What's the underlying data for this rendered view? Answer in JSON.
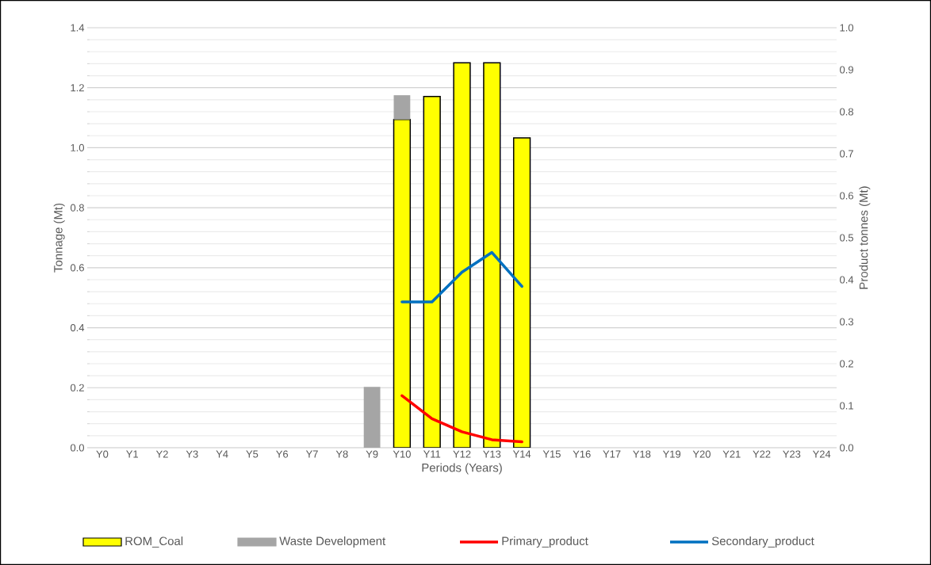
{
  "chart_data": {
    "type": "bar",
    "stacked": true,
    "xlabel": "Periods (Years)",
    "ylabel": "Tonnage (Mt)",
    "y2label": "Product tonnes (Mt)",
    "categories": [
      "Y0",
      "Y1",
      "Y2",
      "Y3",
      "Y4",
      "Y5",
      "Y6",
      "Y7",
      "Y8",
      "Y9",
      "Y10",
      "Y11",
      "Y12",
      "Y13",
      "Y14",
      "Y15",
      "Y16",
      "Y17",
      "Y18",
      "Y19",
      "Y20",
      "Y21",
      "Y22",
      "Y23",
      "Y24"
    ],
    "series": [
      {
        "name": "ROM_Coal",
        "color": "#ffff00",
        "values": [
          null,
          null,
          null,
          null,
          null,
          null,
          null,
          null,
          null,
          null,
          1.094,
          1.171,
          1.283,
          1.283,
          1.033,
          null,
          null,
          null,
          null,
          null,
          null,
          null,
          null,
          null,
          null
        ]
      },
      {
        "name": "Waste Development",
        "color": "#a5a5a5",
        "values": [
          null,
          null,
          null,
          null,
          null,
          null,
          null,
          null,
          null,
          0.203,
          0.081,
          null,
          null,
          null,
          null,
          null,
          null,
          null,
          null,
          null,
          null,
          null,
          null,
          null,
          null
        ]
      },
      {
        "name": "Primary_product",
        "type": "line",
        "axis": "y2",
        "color": "#ff0000",
        "values": [
          null,
          null,
          null,
          null,
          null,
          null,
          null,
          null,
          null,
          null,
          0.124,
          0.069,
          0.038,
          0.019,
          0.014,
          null,
          null,
          null,
          null,
          null,
          null,
          null,
          null,
          null,
          null
        ]
      },
      {
        "name": "Secondary_product",
        "type": "line",
        "axis": "y2",
        "color": "#0070c0",
        "values": [
          null,
          null,
          null,
          null,
          null,
          null,
          null,
          null,
          null,
          null,
          0.347,
          0.347,
          0.418,
          0.465,
          0.384,
          null,
          null,
          null,
          null,
          null,
          null,
          null,
          null,
          null,
          null
        ]
      }
    ],
    "ylim": [
      0,
      1.4
    ],
    "yticks": [
      {
        "value": 0,
        "label": "0.0"
      },
      {
        "value": 0.2,
        "label": "0.2"
      },
      {
        "value": 0.4,
        "label": "0.4"
      },
      {
        "value": 0.6,
        "label": "0.6"
      },
      {
        "value": 0.8,
        "label": "0.8"
      },
      {
        "value": 1.0,
        "label": "1.0"
      },
      {
        "value": 1.2,
        "label": "1.2"
      },
      {
        "value": 1.4,
        "label": "1.4"
      }
    ],
    "y2lim": [
      0,
      1.0
    ],
    "y2ticks": [
      {
        "value": 0,
        "label": "0.0"
      },
      {
        "value": 0.1,
        "label": "0.1"
      },
      {
        "value": 0.2,
        "label": "0.2"
      },
      {
        "value": 0.3,
        "label": "0.3"
      },
      {
        "value": 0.4,
        "label": "0.4"
      },
      {
        "value": 0.5,
        "label": "0.5"
      },
      {
        "value": 0.6,
        "label": "0.6"
      },
      {
        "value": 0.7,
        "label": "0.7"
      },
      {
        "value": 0.8,
        "label": "0.8"
      },
      {
        "value": 0.9,
        "label": "0.9"
      },
      {
        "value": 1.0,
        "label": "1.0"
      }
    ],
    "grid": "y",
    "legend": "bottom",
    "marker": "none",
    "line_style": "solid"
  }
}
